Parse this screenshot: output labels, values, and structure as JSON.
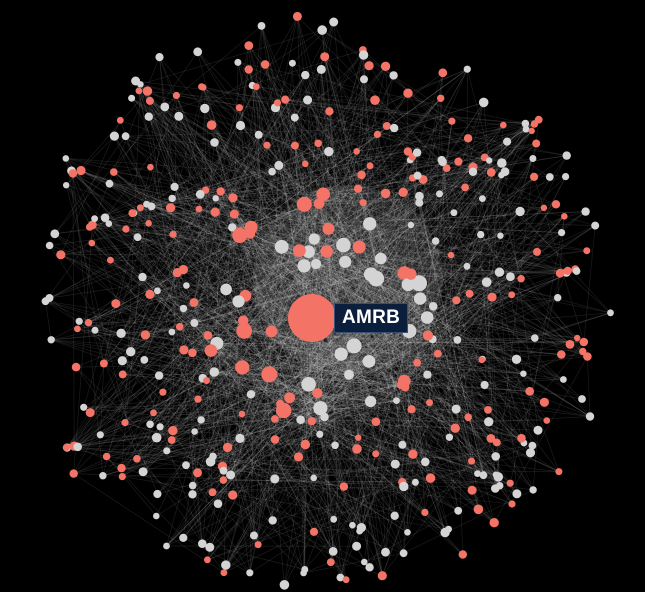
{
  "graph": {
    "highlighted_node": {
      "label": "AMRB"
    },
    "colors": {
      "background": "#000000",
      "node_red": "#f47367",
      "node_grey": "#d4d4d4",
      "edge": "#ffffff",
      "label_bg": "#0b1f3d",
      "label_text": "#ffffff"
    }
  }
}
